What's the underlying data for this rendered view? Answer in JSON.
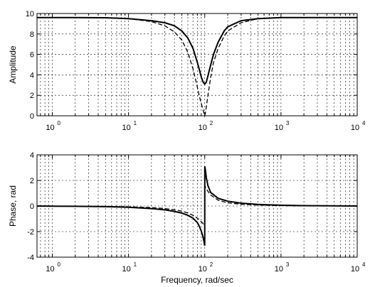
{
  "chart_data": [
    {
      "type": "line",
      "xlabel": "",
      "ylabel": "Amplitude",
      "xscale": "log",
      "xlim": [
        0.63,
        10000
      ],
      "ylim": [
        0,
        10
      ],
      "grid": "on",
      "yticks": [
        0,
        2,
        4,
        6,
        8,
        10
      ],
      "xticks": [
        1,
        10,
        100,
        1000,
        10000
      ],
      "xtick_labels": [
        {
          "base": "10",
          "exp": "0"
        },
        {
          "base": "10",
          "exp": "1"
        },
        {
          "base": "10",
          "exp": "2"
        },
        {
          "base": "10",
          "exp": "3"
        },
        {
          "base": "10",
          "exp": "4"
        }
      ],
      "series": [
        {
          "style": "solid",
          "x": [
            0.63,
            1,
            2,
            5,
            10,
            20,
            30,
            40,
            50,
            60,
            70,
            80,
            85,
            90,
            95,
            100,
            105,
            110,
            120,
            130,
            150,
            180,
            200,
            300,
            500,
            1000,
            2000,
            5000,
            10000
          ],
          "y": [
            9.6,
            9.6,
            9.6,
            9.58,
            9.5,
            9.3,
            9.1,
            8.8,
            8.3,
            7.6,
            6.6,
            5.2,
            4.5,
            3.8,
            3.3,
            3.1,
            3.3,
            3.9,
            5.0,
            6.0,
            7.2,
            8.3,
            8.7,
            9.3,
            9.5,
            9.6,
            9.6,
            9.6,
            9.6
          ]
        },
        {
          "style": "dashed",
          "x": [
            0.63,
            1,
            2,
            5,
            10,
            20,
            30,
            40,
            50,
            60,
            70,
            80,
            85,
            90,
            95,
            98,
            100,
            102,
            105,
            110,
            120,
            130,
            150,
            180,
            200,
            300,
            500,
            1000,
            2000,
            5000,
            10000
          ],
          "y": [
            9.6,
            9.6,
            9.6,
            9.58,
            9.5,
            9.2,
            8.8,
            8.2,
            7.4,
            6.2,
            4.6,
            2.8,
            1.9,
            1.2,
            0.6,
            0.2,
            0.0,
            0.3,
            0.9,
            2.0,
            3.8,
            5.2,
            6.6,
            7.8,
            8.3,
            9.1,
            9.5,
            9.6,
            9.6,
            9.6,
            9.6
          ]
        }
      ]
    },
    {
      "type": "line",
      "xlabel": "Frequency, rad/sec",
      "ylabel": "Phase, rad",
      "xscale": "log",
      "xlim": [
        0.63,
        10000
      ],
      "ylim": [
        -4,
        4
      ],
      "grid": "on",
      "yticks": [
        -4,
        -2,
        0,
        2,
        4
      ],
      "xticks": [
        1,
        10,
        100,
        1000,
        10000
      ],
      "xtick_labels": [
        {
          "base": "10",
          "exp": "0"
        },
        {
          "base": "10",
          "exp": "1"
        },
        {
          "base": "10",
          "exp": "2"
        },
        {
          "base": "10",
          "exp": "3"
        },
        {
          "base": "10",
          "exp": "4"
        }
      ],
      "series": [
        {
          "style": "solid",
          "x": [
            0.63,
            1,
            2,
            5,
            10,
            20,
            30,
            40,
            50,
            60,
            70,
            80,
            85,
            90,
            95,
            98,
            99.9,
            100.1,
            102,
            105,
            110,
            120,
            150,
            200,
            300,
            500,
            1000,
            2000,
            5000,
            10000
          ],
          "y": [
            0,
            -0.01,
            -0.02,
            -0.05,
            -0.1,
            -0.2,
            -0.3,
            -0.42,
            -0.55,
            -0.72,
            -0.95,
            -1.3,
            -1.6,
            -1.95,
            -2.45,
            -2.8,
            -3.1,
            3.1,
            2.8,
            2.2,
            1.6,
            1.05,
            0.6,
            0.38,
            0.22,
            0.12,
            0.06,
            0.03,
            0.01,
            0
          ]
        },
        {
          "style": "dashed",
          "x": [
            0.63,
            1,
            2,
            5,
            10,
            20,
            30,
            40,
            50,
            60,
            70,
            80,
            85,
            90,
            95,
            99.9,
            100.1,
            105,
            110,
            120,
            150,
            200,
            300,
            500,
            1000,
            2000,
            5000,
            10000
          ],
          "y": [
            0,
            -0.005,
            -0.01,
            -0.03,
            -0.06,
            -0.12,
            -0.2,
            -0.3,
            -0.4,
            -0.55,
            -0.72,
            -0.95,
            -1.08,
            -1.22,
            -1.38,
            -1.57,
            1.57,
            1.35,
            1.15,
            0.85,
            0.45,
            0.25,
            0.14,
            0.07,
            0.03,
            0.01,
            0.005,
            0
          ]
        }
      ]
    }
  ]
}
